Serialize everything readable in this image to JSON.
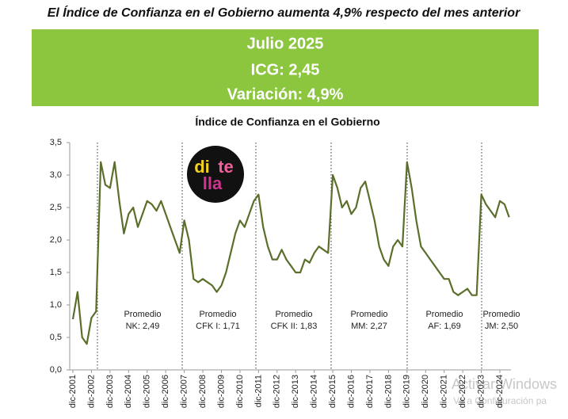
{
  "header": {
    "headline": "El Índice de Confianza en el Gobierno aumenta 4,9% respecto del mes anterior",
    "banner": [
      "Julio 2025",
      "ICG: 2,45",
      "Variación: 4,9%"
    ]
  },
  "logo": {
    "text": [
      "di",
      "te",
      "lla"
    ]
  },
  "watermark": [
    "Activar Windows",
    "Ve a Configuración pa"
  ],
  "chart_data": {
    "type": "line",
    "title": "Índice de Confianza en el Gobierno",
    "categories": [
      "dic-2001",
      null,
      null,
      null,
      "dic-2002",
      null,
      null,
      null,
      "dic-2003",
      null,
      null,
      null,
      "dic-2004",
      null,
      null,
      null,
      "dic-2005",
      null,
      null,
      null,
      "dic-2006",
      null,
      null,
      null,
      "dic-2007",
      null,
      null,
      null,
      "dic-2008",
      null,
      null,
      null,
      "dic-2009",
      null,
      null,
      null,
      "dic-2010",
      null,
      null,
      null,
      "dic-2011",
      null,
      null,
      null,
      "dic-2012",
      null,
      null,
      null,
      "dic-2013",
      null,
      null,
      null,
      "dic-2014",
      null,
      null,
      null,
      "dic-2015",
      null,
      null,
      null,
      "dic-2016",
      null,
      null,
      null,
      "dic-2017",
      null,
      null,
      null,
      "dic-2018",
      null,
      null,
      null,
      "dic-2019",
      null,
      null,
      null,
      "dic-2020",
      null,
      null,
      null,
      "dic-2021",
      null,
      null,
      null,
      "dic-2022",
      null,
      null,
      null,
      "dic-2023",
      null,
      null,
      null,
      "dic-2024",
      null,
      null
    ],
    "series": [
      {
        "name": "ICG",
        "color": "#5b6f2b",
        "values": [
          0.78,
          1.2,
          0.5,
          0.4,
          0.8,
          0.9,
          3.2,
          2.85,
          2.8,
          3.2,
          2.6,
          2.1,
          2.4,
          2.5,
          2.2,
          2.4,
          2.6,
          2.55,
          2.45,
          2.6,
          2.4,
          2.2,
          2.0,
          1.8,
          2.3,
          2.0,
          1.4,
          1.35,
          1.4,
          1.35,
          1.3,
          1.2,
          1.3,
          1.5,
          1.8,
          2.1,
          2.3,
          2.2,
          2.4,
          2.6,
          2.7,
          2.2,
          1.9,
          1.7,
          1.7,
          1.85,
          1.7,
          1.6,
          1.5,
          1.5,
          1.7,
          1.65,
          1.8,
          1.9,
          1.85,
          1.8,
          3.0,
          2.8,
          2.5,
          2.6,
          2.4,
          2.5,
          2.8,
          2.9,
          2.6,
          2.3,
          1.9,
          1.7,
          1.6,
          1.9,
          2.0,
          1.9,
          3.2,
          2.8,
          2.3,
          1.9,
          1.8,
          1.7,
          1.6,
          1.5,
          1.4,
          1.4,
          1.2,
          1.15,
          1.2,
          1.25,
          1.15,
          1.15,
          2.7,
          2.55,
          2.45,
          2.35,
          2.6,
          2.55,
          2.35
        ]
      }
    ],
    "ylim": [
      0,
      3.5
    ],
    "yticks": [
      {
        "value": 0,
        "label": "0,0"
      },
      {
        "value": 0.5,
        "label": "0,5"
      },
      {
        "value": 1,
        "label": "1,0"
      },
      {
        "value": 1.5,
        "label": "1,5"
      },
      {
        "value": 2,
        "label": "2,0"
      },
      {
        "value": 2.5,
        "label": "2,5"
      },
      {
        "value": 3,
        "label": "3,0"
      },
      {
        "value": 3.5,
        "label": "3,5"
      }
    ],
    "annotations": [
      [
        "Promedio",
        "NK: 2,49"
      ],
      [
        "Promedio",
        "CFK I: 1,71"
      ],
      [
        "Promedio",
        "CFK II: 1,83"
      ],
      [
        "Promedio",
        "MM: 2,27"
      ],
      [
        "Promedio",
        "AF: 1,69"
      ],
      [
        "Promedio",
        "JM: 2,50"
      ]
    ]
  }
}
